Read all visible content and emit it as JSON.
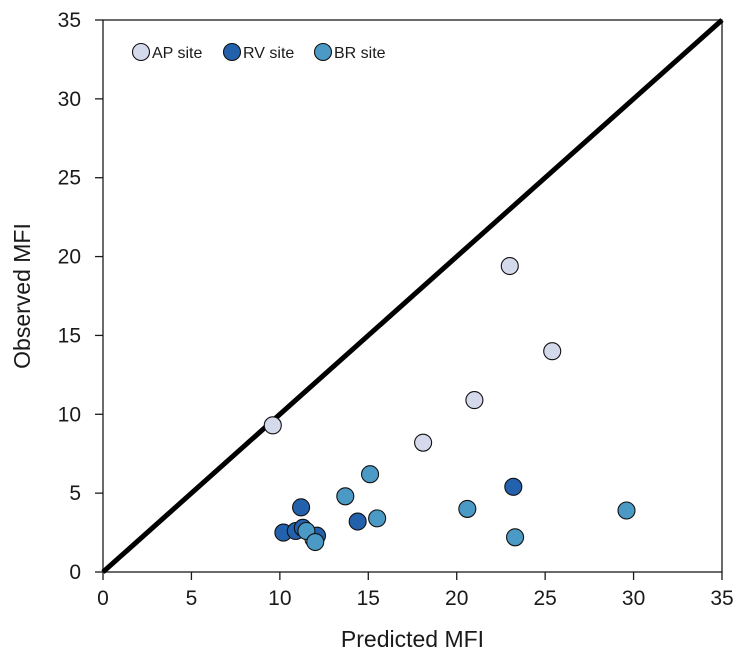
{
  "chart_data": {
    "type": "scatter",
    "title": "",
    "xlabel": "Predicted MFI",
    "ylabel": "Observed MFI",
    "xlim": [
      0,
      35
    ],
    "ylim": [
      0,
      35
    ],
    "xticks": [
      0,
      5,
      10,
      15,
      20,
      25,
      30,
      35
    ],
    "yticks": [
      0,
      5,
      10,
      15,
      20,
      25,
      30,
      35
    ],
    "grid": false,
    "legend_position": "top-left",
    "reference_line": {
      "x": [
        0,
        35
      ],
      "y": [
        0,
        35
      ],
      "color": "#000000"
    },
    "series": [
      {
        "name": "AP site",
        "color": "#d4daeb",
        "points": [
          {
            "x": 9.6,
            "y": 9.3
          },
          {
            "x": 18.1,
            "y": 8.2
          },
          {
            "x": 21.0,
            "y": 10.9
          },
          {
            "x": 23.0,
            "y": 19.4
          },
          {
            "x": 25.4,
            "y": 14.0
          },
          {
            "x": 11.9,
            "y": 2.1
          }
        ]
      },
      {
        "name": "RV site",
        "color": "#2461ac",
        "points": [
          {
            "x": 10.2,
            "y": 2.5
          },
          {
            "x": 10.9,
            "y": 2.6
          },
          {
            "x": 11.2,
            "y": 4.1
          },
          {
            "x": 11.3,
            "y": 2.8
          },
          {
            "x": 12.1,
            "y": 2.3
          },
          {
            "x": 14.4,
            "y": 3.2
          },
          {
            "x": 23.2,
            "y": 5.4
          }
        ]
      },
      {
        "name": "BR site",
        "color": "#4b9ac6",
        "points": [
          {
            "x": 11.5,
            "y": 2.6
          },
          {
            "x": 12.0,
            "y": 1.9
          },
          {
            "x": 13.7,
            "y": 4.8
          },
          {
            "x": 15.1,
            "y": 6.2
          },
          {
            "x": 15.5,
            "y": 3.4
          },
          {
            "x": 20.6,
            "y": 4.0
          },
          {
            "x": 23.3,
            "y": 2.2
          },
          {
            "x": 29.6,
            "y": 3.9
          }
        ]
      }
    ]
  }
}
